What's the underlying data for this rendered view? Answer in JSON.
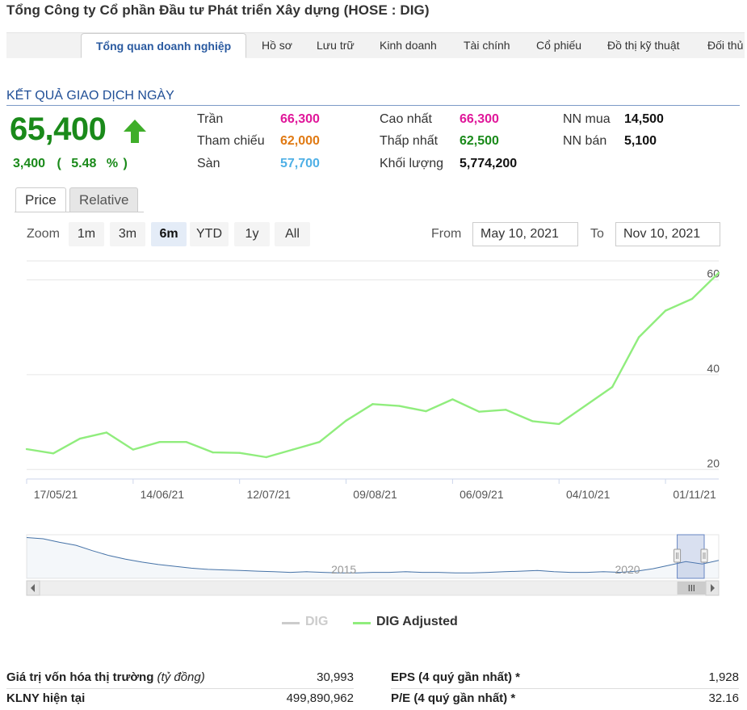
{
  "company": {
    "title": "Tổng Công ty Cổ phần Đầu tư Phát triển Xây dựng (HOSE : DIG)"
  },
  "tabs": [
    {
      "label": "Tổng quan doanh nghiệp",
      "active": true
    },
    {
      "label": "Hồ sơ"
    },
    {
      "label": "Lưu trữ"
    },
    {
      "label": "Kinh doanh"
    },
    {
      "label": "Tài chính"
    },
    {
      "label": "Cổ phiếu"
    },
    {
      "label": "Đồ thị kỹ thuật"
    },
    {
      "label": "Đối thủ"
    }
  ],
  "trading": {
    "section_title": "KẾT QUẢ GIAO DỊCH NGÀY",
    "price": "65,400",
    "change": "3,400",
    "change_pct": "5.48",
    "change_open": "(",
    "change_close": "%  )",
    "arrow_icon": "up-arrow-icon",
    "stats": {
      "ceiling": {
        "label": "Trần",
        "value": "66,300",
        "color": "#e0179a"
      },
      "reference": {
        "label": "Tham chiếu",
        "value": "62,000",
        "color": "#e07a14"
      },
      "floor": {
        "label": "Sàn",
        "value": "57,700",
        "color": "#4fb0e6"
      },
      "high": {
        "label": "Cao nhất",
        "value": "66,300",
        "color": "#e0179a"
      },
      "low": {
        "label": "Thấp nhất",
        "value": "62,500",
        "color": "#1a8a1a"
      },
      "volume": {
        "label": "Khối lượng",
        "value": "5,774,200",
        "color": "#111111"
      },
      "foreign_buy": {
        "label": "NN mua",
        "value": "14,500",
        "color": "#111111"
      },
      "foreign_sell": {
        "label": "NN bán",
        "value": "5,100",
        "color": "#111111"
      }
    }
  },
  "chart_tabs": [
    {
      "label": "Price",
      "active": true
    },
    {
      "label": "Relative"
    }
  ],
  "zoom": {
    "label": "Zoom",
    "options": [
      "1m",
      "3m",
      "6m",
      "YTD",
      "1y",
      "All"
    ],
    "selected": "6m"
  },
  "range": {
    "from_label": "From",
    "from": "May 10, 2021",
    "to_label": "To",
    "to": "Nov 10, 2021"
  },
  "chart_data": {
    "type": "line",
    "x": [
      "17/05/21",
      "24/05/21",
      "31/05/21",
      "07/06/21",
      "14/06/21",
      "21/06/21",
      "28/06/21",
      "05/07/21",
      "12/07/21",
      "19/07/21",
      "26/07/21",
      "02/08/21",
      "09/08/21",
      "16/08/21",
      "23/08/21",
      "30/08/21",
      "06/09/21",
      "13/09/21",
      "20/09/21",
      "27/09/21",
      "04/10/21",
      "11/10/21",
      "18/10/21",
      "25/10/21",
      "01/11/21",
      "08/11/21",
      "10/11/21"
    ],
    "series": [
      {
        "name": "DIG Adjusted",
        "color": "#90ed7d",
        "values": [
          24.3,
          23.4,
          26.5,
          27.8,
          24.2,
          25.8,
          25.8,
          23.6,
          23.5,
          22.6,
          24.2,
          25.8,
          30.3,
          33.8,
          33.4,
          32.3,
          34.8,
          32.2,
          32.6,
          30.2,
          29.6,
          33.5,
          37.4,
          47.9,
          53.5,
          56.0,
          61.5
        ]
      }
    ],
    "x_tick_labels": [
      "17/05/21",
      "14/06/21",
      "12/07/21",
      "09/08/21",
      "06/09/21",
      "04/10/21",
      "01/11/21"
    ],
    "y_ticks": [
      20,
      40,
      60
    ],
    "ylim": [
      18,
      64
    ],
    "grid": "horizontal",
    "navigator": {
      "x_labels": [
        "2015",
        "2020"
      ],
      "values": [
        88,
        86,
        80,
        75,
        66,
        58,
        52,
        47,
        43,
        40,
        37,
        35,
        34,
        33,
        32,
        31,
        30,
        31,
        30,
        29,
        29,
        30,
        30,
        31,
        30,
        30,
        29,
        29,
        30,
        31,
        32,
        33,
        31,
        30,
        30,
        31,
        30,
        32,
        36,
        42,
        48,
        44,
        50
      ],
      "range_start_pct": 94
    },
    "legend": [
      {
        "name": "DIG",
        "color": "#cccccc",
        "visible": false
      },
      {
        "name": "DIG Adjusted",
        "color": "#90ed7d",
        "visible": true
      }
    ]
  },
  "fundamentals": {
    "market_cap": {
      "label": "Giá trị vốn hóa thị trường",
      "unit": "(tỷ đồng)",
      "value": "30,993"
    },
    "shares": {
      "label": "KLNY hiện tại",
      "value": "499,890,962"
    },
    "eps": {
      "label": "EPS (4 quý gần nhất) *",
      "value": "1,928"
    },
    "pe": {
      "label": "P/E (4 quý gần nhất) *",
      "value": "32.16"
    }
  }
}
